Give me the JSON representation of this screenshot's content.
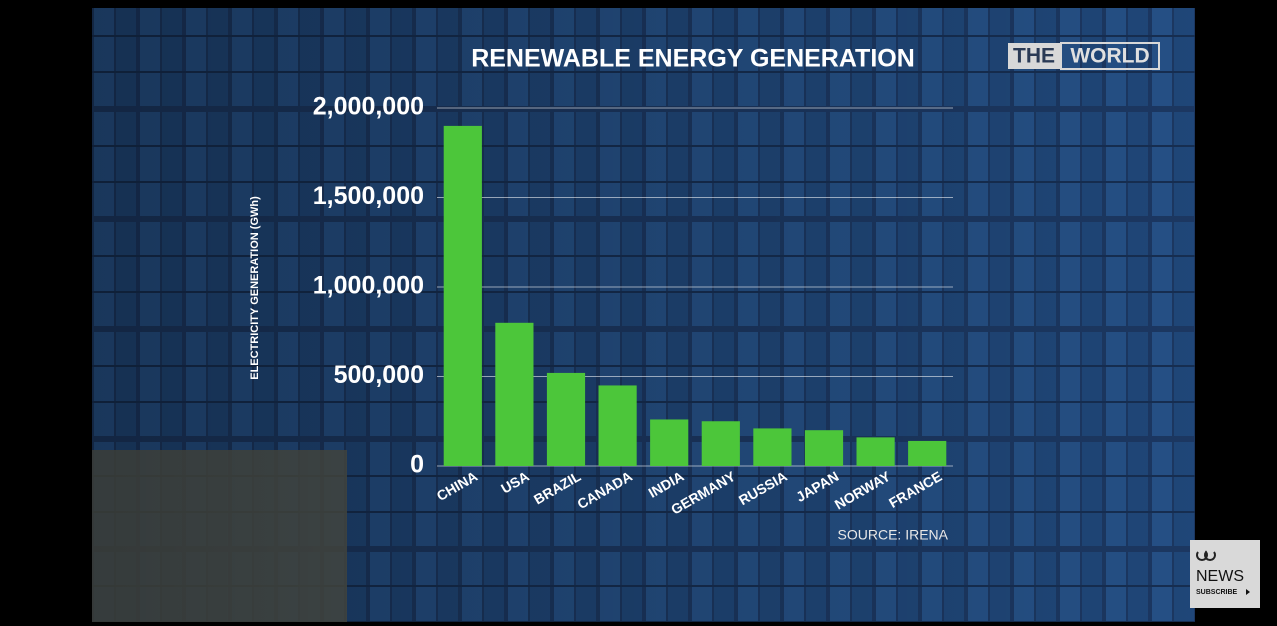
{
  "chart_data": {
    "type": "bar",
    "title": "RENEWABLE ENERGY GENERATION",
    "y_label": "ELECTRICITY GENERATION (GWh)",
    "categories": [
      "CHINA",
      "USA",
      "BRAZIL",
      "CANADA",
      "INDIA",
      "GERMANY",
      "RUSSIA",
      "JAPAN",
      "NORWAY",
      "FRANCE"
    ],
    "values": [
      1900000,
      800000,
      520000,
      450000,
      260000,
      250000,
      210000,
      200000,
      160000,
      140000
    ],
    "color": "#4cc63a",
    "ylim": [
      0,
      2000000
    ],
    "yticks": [
      0,
      {
        "value": 500000,
        "label": "500,000"
      },
      {
        "value": 1000000,
        "label": "1,000,000"
      },
      {
        "value": 1500000,
        "label": "1,500,000"
      },
      {
        "value": 2000000,
        "label": "2,000,000"
      }
    ],
    "grid": true,
    "source": "SOURCE: IRENA"
  },
  "logo": {
    "first": "THE",
    "second": "WORLD"
  },
  "badge": {
    "name": "NEWS",
    "action": "SUBSCRIBE"
  }
}
